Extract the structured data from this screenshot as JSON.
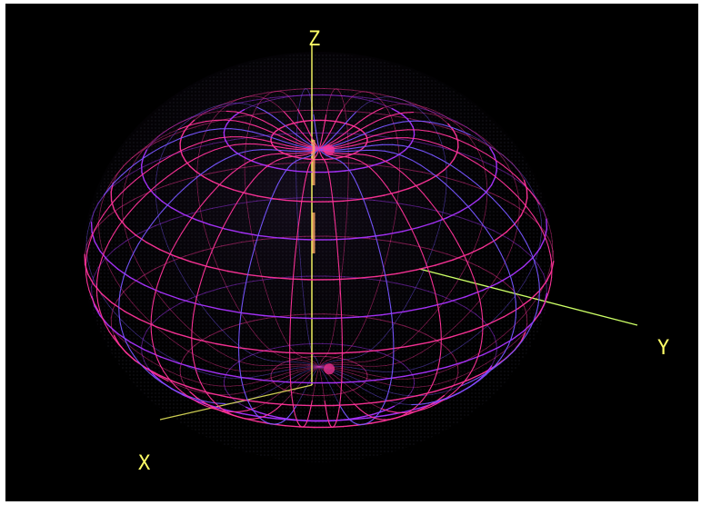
{
  "axes": {
    "z_label": "Z",
    "x_label": "X",
    "y_label": "Y"
  },
  "colors": {
    "background": "#000000",
    "mesh_primary": "#ff3399",
    "mesh_secondary": "#aa33ff",
    "mesh_tertiary": "#7755ff",
    "axis": "#ffff66",
    "highlight": "#ffaa66"
  },
  "icons": {
    "mesh": "radiation-pattern-wireframe"
  }
}
